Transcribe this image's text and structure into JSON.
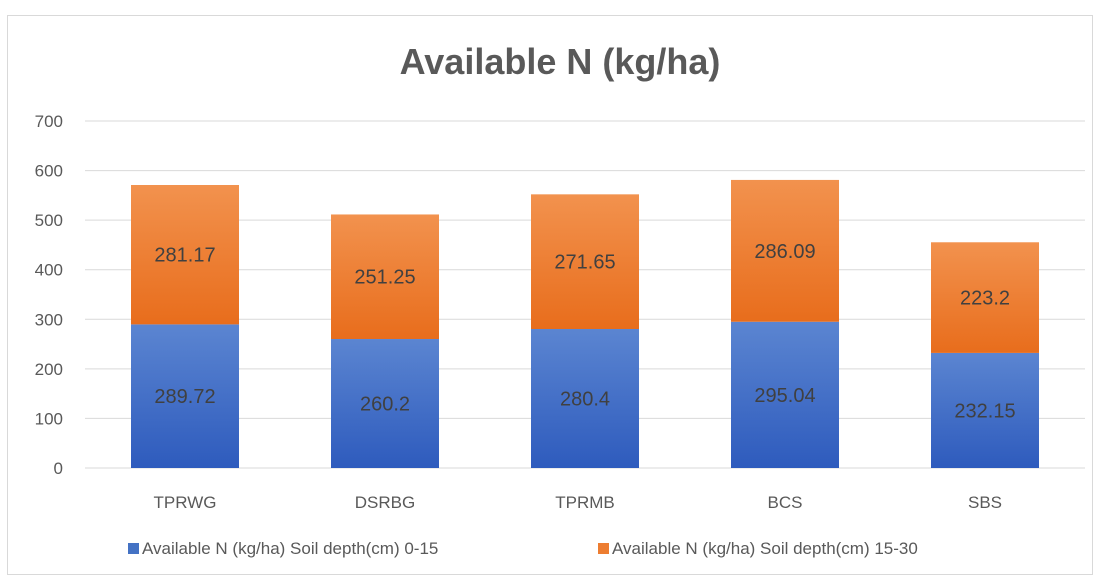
{
  "chart_data": {
    "type": "bar",
    "stacked": true,
    "title": "Available N (kg/ha)",
    "categories": [
      "TPRWG",
      "DSRBG",
      "TPRMB",
      "BCS",
      "SBS"
    ],
    "series": [
      {
        "name": "Available N (kg/ha) Soil depth(cm) 0-15",
        "values": [
          289.72,
          260.2,
          280.4,
          295.04,
          232.15
        ],
        "labels": [
          "289.72",
          "260.2",
          "280.4",
          "295.04",
          "232.15"
        ],
        "color": "#4472C4"
      },
      {
        "name": "Available N (kg/ha) Soil depth(cm) 15-30",
        "values": [
          281.17,
          251.25,
          271.65,
          286.09,
          223.2
        ],
        "labels": [
          "281.17",
          "251.25",
          "271.65",
          "286.09",
          "223.2"
        ],
        "color": "#ED7D31"
      }
    ],
    "ylim": [
      0,
      700
    ],
    "yticks": [
      0,
      100,
      200,
      300,
      400,
      500,
      600,
      700
    ],
    "xlabel": "",
    "ylabel": "",
    "grid": true,
    "legend_position": "bottom"
  }
}
